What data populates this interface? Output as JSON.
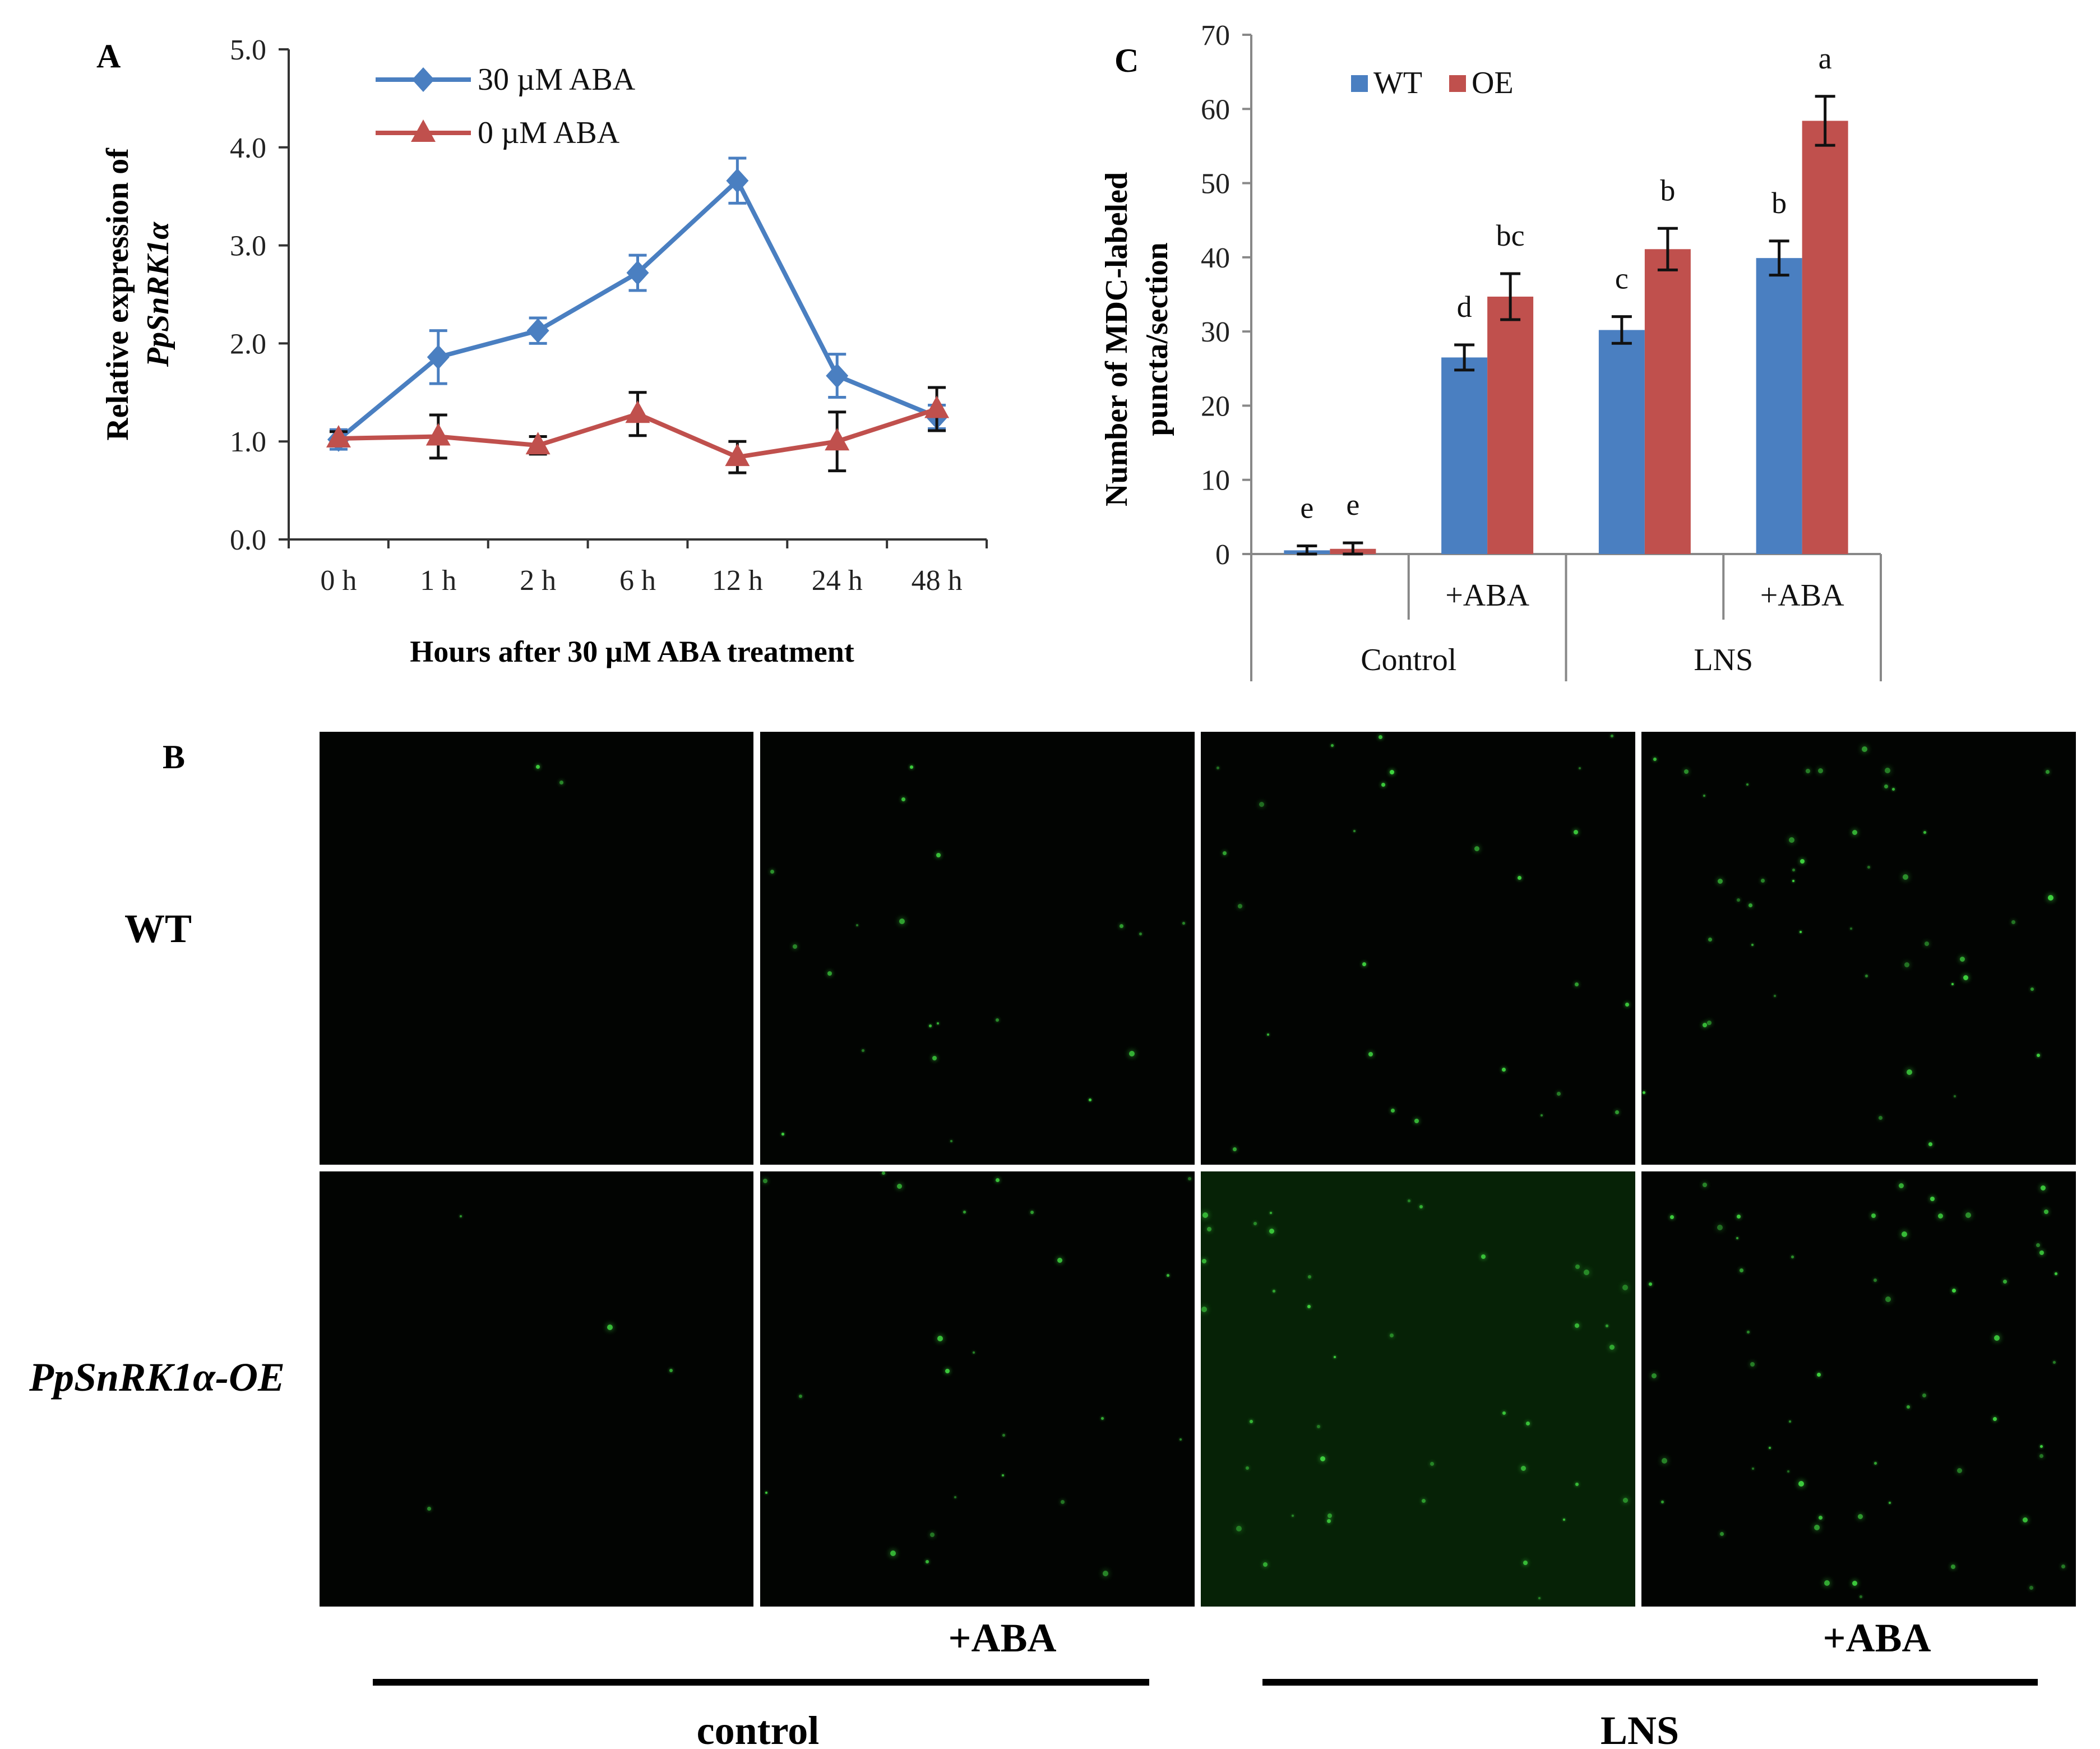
{
  "chart_data": [
    {
      "panel": "A",
      "type": "line",
      "categories": [
        "0 h",
        "1 h",
        "2 h",
        "6 h",
        "12 h",
        "24 h",
        "48 h"
      ],
      "xlabel": "Hours after 30 µM ABA treatment",
      "ylabel_line1": "Relative expression of",
      "ylabel_line2": "PpSnRK1α",
      "ylim": [
        0,
        5
      ],
      "yticks": [
        "0.0",
        "1.0",
        "2.0",
        "3.0",
        "4.0",
        "5.0"
      ],
      "series": [
        {
          "name": "30 µM ABA",
          "color": "#4a7fc1",
          "marker": "diamond",
          "values": [
            1.02,
            1.86,
            2.13,
            2.72,
            3.66,
            1.67,
            1.25
          ],
          "errors": [
            0.1,
            0.27,
            0.13,
            0.18,
            0.23,
            0.22,
            0.12
          ]
        },
        {
          "name": "0 µM ABA",
          "color": "#c0504d",
          "marker": "triangle",
          "values": [
            1.03,
            1.05,
            0.96,
            1.28,
            0.84,
            1.0,
            1.33
          ],
          "errors": [
            0.07,
            0.22,
            0.09,
            0.22,
            0.16,
            0.3,
            0.22
          ]
        }
      ]
    },
    {
      "panel": "C",
      "type": "bar",
      "categories": [
        "Control",
        "Control +ABA",
        "LNS",
        "LNS +ABA"
      ],
      "group_labels": [
        "Control",
        "LNS"
      ],
      "sub_labels": [
        "",
        "+ABA",
        "",
        "+ABA"
      ],
      "ylabel_line1": "Number of MDC-labeled",
      "ylabel_line2": "puncta/section",
      "ylim": [
        0,
        70
      ],
      "yticks": [
        "0",
        "10",
        "20",
        "30",
        "40",
        "50",
        "60",
        "70"
      ],
      "series": [
        {
          "name": "WT",
          "color": "#4a7fc1",
          "values": [
            0.5,
            26.5,
            30.2,
            39.9
          ],
          "errors": [
            0.6,
            1.7,
            1.8,
            2.3
          ],
          "letters": [
            "e",
            "d",
            "c",
            "b"
          ]
        },
        {
          "name": "OE",
          "color": "#c0504d",
          "values": [
            0.7,
            34.7,
            41.1,
            58.4
          ],
          "errors": [
            0.8,
            3.1,
            2.8,
            3.3
          ],
          "letters": [
            "e",
            "bc",
            "b",
            "a"
          ]
        }
      ]
    }
  ],
  "panels": {
    "a": "A",
    "b": "B",
    "c": "C"
  },
  "micrograph": {
    "row_labels": [
      "WT",
      "PpSnRK1α-OE"
    ],
    "col_aba_label": "+ABA",
    "group_labels": [
      "control",
      "LNS"
    ],
    "dot_color": "#3fd43f"
  }
}
